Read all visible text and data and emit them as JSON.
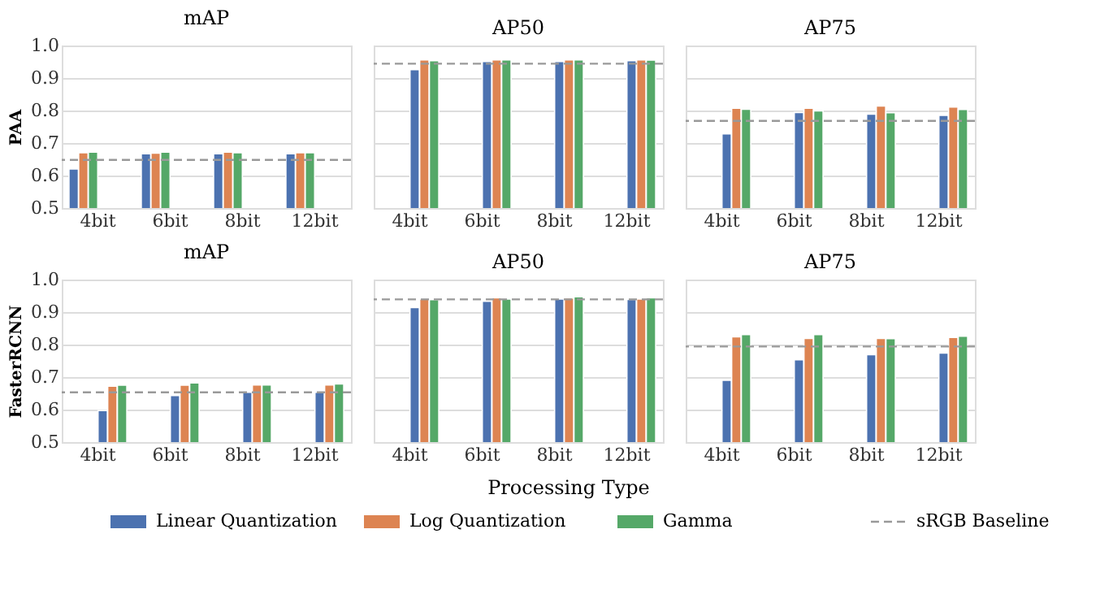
{
  "chart_data": [
    {
      "type": "bar",
      "title": "mAP",
      "ylabel": "PAA",
      "categories": [
        "4bit",
        "6bit",
        "8bit",
        "12bit"
      ],
      "series": [
        {
          "name": "Linear Quantization",
          "color": "#4c72b0",
          "values": [
            0.62,
            0.667,
            0.667,
            0.667
          ]
        },
        {
          "name": "Log Quantization",
          "color": "#dd8452",
          "values": [
            0.67,
            0.669,
            0.672,
            0.67
          ]
        },
        {
          "name": "Gamma",
          "color": "#55a868",
          "values": [
            0.672,
            0.672,
            0.67,
            0.67
          ]
        }
      ],
      "ylim": [
        0.5,
        1.0
      ],
      "yticks": [
        0.5,
        0.6,
        0.7,
        0.8,
        0.9,
        {
          "value": 1.0,
          "label": "1.0"
        }
      ],
      "grid": "y",
      "legend": "bottom",
      "legend_title": "Processing Type",
      "ref_lines": [
        {
          "axis": "y",
          "value": 0.648,
          "label": "sRGB Baseline",
          "color": "#999999",
          "line_style": "dashed"
        }
      ]
    },
    {
      "type": "bar",
      "title": "AP50",
      "categories": [
        "4bit",
        "6bit",
        "8bit",
        "12bit"
      ],
      "series": [
        {
          "color": "#4c72b0",
          "values": [
            0.926,
            0.951,
            0.951,
            0.953
          ]
        },
        {
          "color": "#dd8452",
          "values": [
            0.956,
            0.956,
            0.956,
            0.956
          ]
        },
        {
          "color": "#55a868",
          "values": [
            0.953,
            0.956,
            0.956,
            0.955
          ]
        }
      ],
      "ylim": [
        0.5,
        1.0
      ],
      "yticks": [
        0.5,
        0.6,
        0.7,
        0.8,
        0.9,
        1.0
      ],
      "grid": "y",
      "tick_labels": "x",
      "ref_lines": [
        {
          "axis": "y",
          "value": 0.944,
          "color": "#999999",
          "line_style": "dashed"
        }
      ]
    },
    {
      "type": "bar",
      "title": "AP75",
      "categories": [
        "4bit",
        "6bit",
        "8bit",
        "12bit"
      ],
      "series": [
        {
          "color": "#4c72b0",
          "values": [
            0.728,
            0.794,
            0.789,
            0.785
          ]
        },
        {
          "color": "#dd8452",
          "values": [
            0.807,
            0.807,
            0.814,
            0.811
          ]
        },
        {
          "color": "#55a868",
          "values": [
            0.804,
            0.799,
            0.793,
            0.803
          ]
        }
      ],
      "ylim": [
        0.5,
        1.0
      ],
      "yticks": [
        0.5,
        0.6,
        0.7,
        0.8,
        0.9,
        1.0
      ],
      "grid": "y",
      "tick_labels": "x",
      "ref_lines": [
        {
          "axis": "y",
          "value": 0.768,
          "color": "#999999",
          "line_style": "dashed"
        }
      ]
    },
    {
      "type": "bar",
      "title": "mAP",
      "ylabel": "FasterRCNN",
      "categories": [
        "4bit",
        "6bit",
        "8bit",
        "12bit"
      ],
      "series": [
        {
          "color": "#4c72b0",
          "values": [
            0.597,
            0.643,
            0.653,
            0.653
          ]
        },
        {
          "color": "#dd8452",
          "values": [
            0.672,
            0.675,
            0.676,
            0.676
          ]
        },
        {
          "color": "#55a868",
          "values": [
            0.675,
            0.682,
            0.676,
            0.679
          ]
        }
      ],
      "ylim": [
        0.5,
        1.0
      ],
      "yticks": [
        0.5,
        0.6,
        0.7,
        0.8,
        0.9,
        {
          "value": 1.0,
          "label": "1.0"
        }
      ],
      "grid": "y",
      "ref_lines": [
        {
          "axis": "y",
          "value": 0.653,
          "color": "#999999",
          "line_style": "dashed"
        }
      ]
    },
    {
      "type": "bar",
      "title": "AP50",
      "categories": [
        "4bit",
        "6bit",
        "8bit",
        "12bit"
      ],
      "series": [
        {
          "color": "#4c72b0",
          "values": [
            0.914,
            0.933,
            0.94,
            0.939
          ]
        },
        {
          "color": "#dd8452",
          "values": [
            0.94,
            0.944,
            0.943,
            0.94
          ]
        },
        {
          "color": "#55a868",
          "values": [
            0.938,
            0.94,
            0.947,
            0.944
          ]
        }
      ],
      "ylim": [
        0.5,
        1.0
      ],
      "yticks": [
        0.5,
        0.6,
        0.7,
        0.8,
        0.9,
        1.0
      ],
      "grid": "y",
      "tick_labels": "x",
      "ref_lines": [
        {
          "axis": "y",
          "value": 0.939,
          "color": "#999999",
          "line_style": "dashed"
        }
      ]
    },
    {
      "type": "bar",
      "title": "AP75",
      "categories": [
        "4bit",
        "6bit",
        "8bit",
        "12bit"
      ],
      "series": [
        {
          "color": "#4c72b0",
          "values": [
            0.69,
            0.753,
            0.769,
            0.774
          ]
        },
        {
          "color": "#dd8452",
          "values": [
            0.824,
            0.819,
            0.819,
            0.822
          ]
        },
        {
          "color": "#55a868",
          "values": [
            0.831,
            0.831,
            0.818,
            0.826
          ]
        }
      ],
      "ylim": [
        0.5,
        1.0
      ],
      "yticks": [
        0.5,
        0.6,
        0.7,
        0.8,
        0.9,
        1.0
      ],
      "grid": "y",
      "tick_labels": "x",
      "ref_lines": [
        {
          "axis": "y",
          "value": 0.794,
          "color": "#999999",
          "line_style": "dashed"
        }
      ]
    }
  ]
}
